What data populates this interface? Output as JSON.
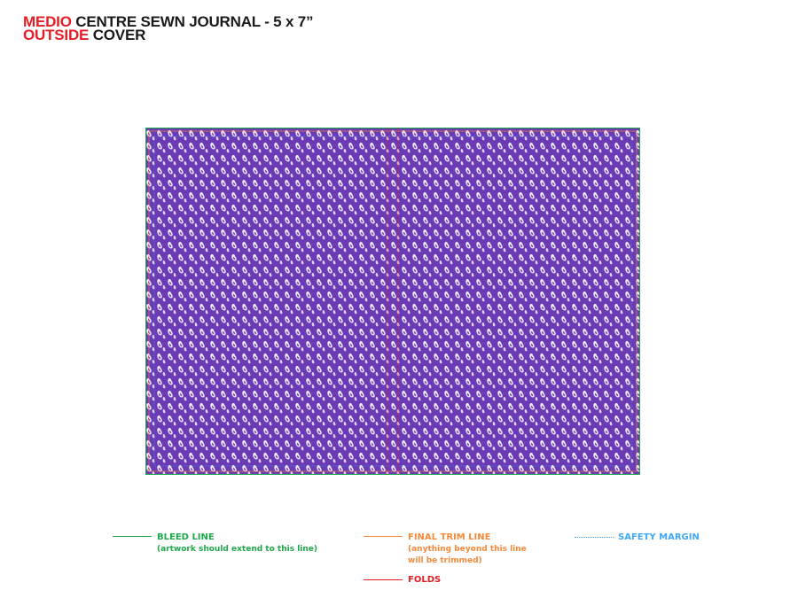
{
  "title": {
    "line1_red": "MEDIO",
    "line1_black": "CENTRE SEWN JOURNAL - 5 x 7”",
    "line2_red": "OUTSIDE",
    "line2_black": "COVER"
  },
  "colors": {
    "title_red": "#e31e24",
    "cover_purple": "#6a3bb5",
    "pattern_white": "#f3eefc",
    "bleed_green": "#1fa84a",
    "trim_orange": "#f58a3c",
    "fold_red": "#e31e24",
    "safety_blue": "#3fa9f5"
  },
  "legend": {
    "bleed": {
      "label": "BLEED LINE",
      "note": "(artwork should extend to this line)"
    },
    "trim": {
      "label": "FINAL TRIM LINE",
      "note_line1": "(anything beyond this line",
      "note_line2": "will be trimmed)"
    },
    "folds": {
      "label": "FOLDS"
    },
    "safety": {
      "label": "SAFETY MARGIN"
    }
  }
}
